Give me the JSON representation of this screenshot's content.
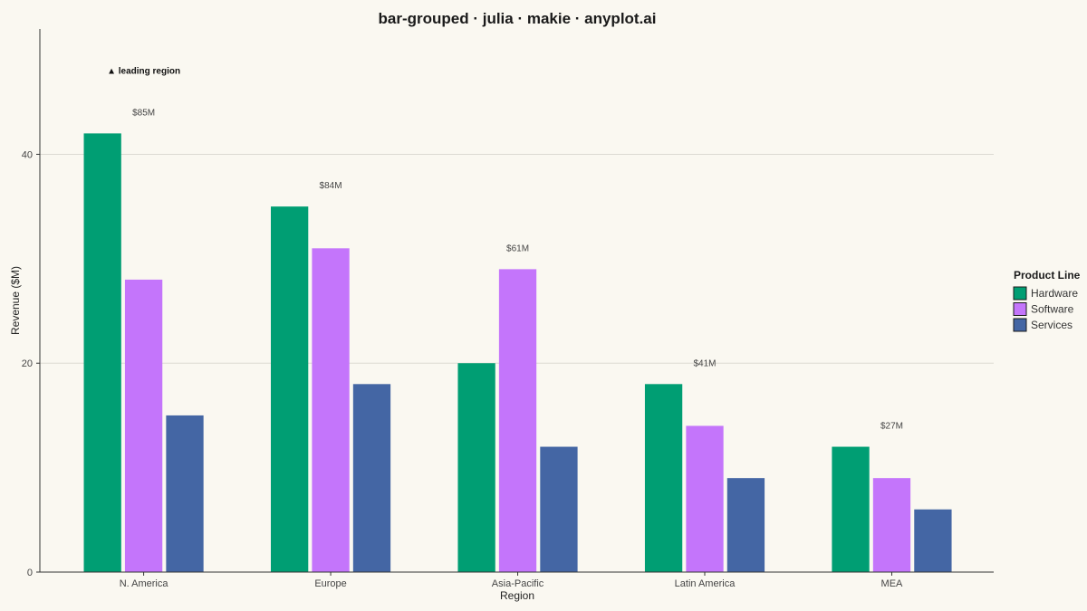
{
  "chart_data": {
    "type": "bar",
    "title": "bar-grouped · julia · makie · anyplot.ai",
    "xlabel": "Region",
    "ylabel": "Revenue ($M)",
    "ylim": [
      0,
      52
    ],
    "yticks": [
      0,
      20,
      40
    ],
    "categories": [
      "N. America",
      "Europe",
      "Asia-Pacific",
      "Latin America",
      "MEA"
    ],
    "series": [
      {
        "name": "Hardware",
        "values": [
          42,
          35,
          20,
          18,
          12
        ],
        "color": "#009e73"
      },
      {
        "name": "Software",
        "values": [
          28,
          31,
          29,
          14,
          9
        ],
        "color": "#c475fb"
      },
      {
        "name": "Services",
        "values": [
          15,
          18,
          12,
          9,
          6
        ],
        "color": "#4466a4"
      }
    ],
    "totals": [
      "$85M",
      "$84M",
      "$61M",
      "$41M",
      "$27M"
    ],
    "annotation": {
      "text": "▲ leading region",
      "category": "N. America"
    },
    "legend": {
      "title": "Product Line",
      "position": "right"
    },
    "grid": true
  }
}
